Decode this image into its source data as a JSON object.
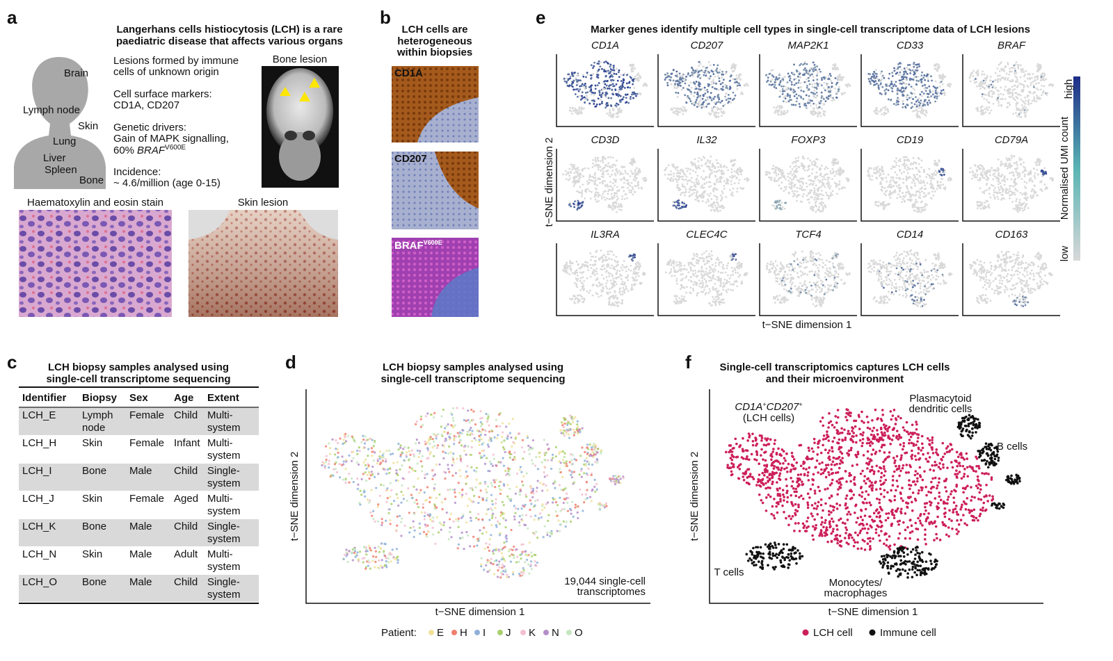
{
  "panel_a": {
    "label": "a",
    "title": [
      "Langerhans cells histiocytosis (LCH) is a rare",
      "paediatric disease that affects various organs"
    ],
    "organs": [
      "Brain",
      "Lymph node",
      "Skin",
      "Lung",
      "Liver",
      "Spleen",
      "Bone"
    ],
    "facts": [
      [
        "Lesions formed by immune",
        "cells of unknown origin"
      ],
      [
        "Cell surface markers:",
        "CD1A, CD207"
      ],
      [
        "Genetic drivers:",
        "Gain of MAPK signalling,"
      ],
      [
        "Incidence:",
        "~ 4.6/million (age 0-15)"
      ]
    ],
    "braf_line": {
      "prefix": "60%",
      "gene": "BRAF",
      "superscript": "V600E"
    },
    "images": {
      "bone": "Bone lesion",
      "he": "Haematoxylin and eosin stain",
      "skin": "Skin lesion"
    }
  },
  "panel_b": {
    "label": "b",
    "title": [
      "LCH cells are",
      "heterogeneous",
      "within biopsies"
    ],
    "stains": [
      "CD1A",
      "CD207",
      {
        "name": "BRAF",
        "superscript": "V600E"
      }
    ]
  },
  "panel_c": {
    "label": "c",
    "title": [
      "LCH biopsy samples analysed using",
      "single-cell transcriptome sequencing"
    ],
    "headers": [
      "Identifier",
      "Biopsy",
      "Sex",
      "Age",
      "Extent"
    ],
    "rows": [
      [
        [
          "LCH_E"
        ],
        [
          "Lymph",
          "node"
        ],
        [
          "Female"
        ],
        [
          "Child"
        ],
        [
          "Multi-",
          "system"
        ]
      ],
      [
        [
          "LCH_H"
        ],
        [
          "Skin"
        ],
        [
          "Female"
        ],
        [
          "Infant"
        ],
        [
          "Multi-",
          "system"
        ]
      ],
      [
        [
          "LCH_I"
        ],
        [
          "Bone"
        ],
        [
          "Male"
        ],
        [
          "Child"
        ],
        [
          "Single-",
          "system"
        ]
      ],
      [
        [
          "LCH_J"
        ],
        [
          "Skin"
        ],
        [
          "Female"
        ],
        [
          "Aged"
        ],
        [
          "Multi-",
          "system"
        ]
      ],
      [
        [
          "LCH_K"
        ],
        [
          "Bone"
        ],
        [
          "Male"
        ],
        [
          "Child"
        ],
        [
          "Single-",
          "system"
        ]
      ],
      [
        [
          "LCH_N"
        ],
        [
          "Skin"
        ],
        [
          "Male"
        ],
        [
          "Adult"
        ],
        [
          "Multi-",
          "system"
        ]
      ],
      [
        [
          "LCH_O"
        ],
        [
          "Bone"
        ],
        [
          "Male"
        ],
        [
          "Child"
        ],
        [
          "Single-",
          "system"
        ]
      ]
    ]
  },
  "panel_d": {
    "label": "d",
    "title": [
      "LCH biopsy samples analysed using",
      "single-cell transcriptome sequencing"
    ],
    "x_label": "t−SNE dimension 1",
    "y_label": "t−SNE dimension 2",
    "annotation": [
      "19,044 single-cell",
      "transcriptomes"
    ],
    "legend_title": "Patient:",
    "series": [
      {
        "name": "E",
        "color": "#efe29a"
      },
      {
        "name": "H",
        "color": "#f07f6e"
      },
      {
        "name": "I",
        "color": "#8eb1da"
      },
      {
        "name": "J",
        "color": "#a9d06c"
      },
      {
        "name": "K",
        "color": "#f3bfd0"
      },
      {
        "name": "N",
        "color": "#b58ec9"
      },
      {
        "name": "O",
        "color": "#c6e6bf"
      }
    ]
  },
  "panel_e": {
    "label": "e",
    "title": "Marker genes identify multiple cell types in single-cell transcriptome data of LCH lesions",
    "genes": [
      "CD1A",
      "CD207",
      "MAP2K1",
      "CD33",
      "BRAF",
      "CD3D",
      "IL32",
      "FOXP3",
      "CD19",
      "CD79A",
      "IL3RA",
      "CLEC4C",
      "TCF4",
      "CD14",
      "CD163"
    ],
    "x_label": "t−SNE dimension 1",
    "y_label": "t−SNE dimension 2",
    "colorbar": {
      "title": "Normalised UMI count",
      "high": "high",
      "low": "low"
    }
  },
  "panel_f": {
    "label": "f",
    "title": [
      "Single-cell transcriptomics captures LCH cells",
      "and their microenvironment"
    ],
    "x_label": "t−SNE dimension 1",
    "y_label": "t−SNE dimension 2",
    "lch_label": {
      "gene1": "CD1A",
      "sup1": "+",
      "gene2": "CD207",
      "sup2": "+",
      "note": "(LCH cells)"
    },
    "annotations": {
      "pdc": [
        "Plasmacytoid",
        "dendritic cells"
      ],
      "b": "B cells",
      "t": "T cells",
      "mono": [
        "Monocytes/",
        "macrophages"
      ]
    },
    "series": [
      {
        "name": "LCH cell",
        "color": "#cc1f5a"
      },
      {
        "name": "Immune cell",
        "color": "#111111"
      }
    ]
  }
}
